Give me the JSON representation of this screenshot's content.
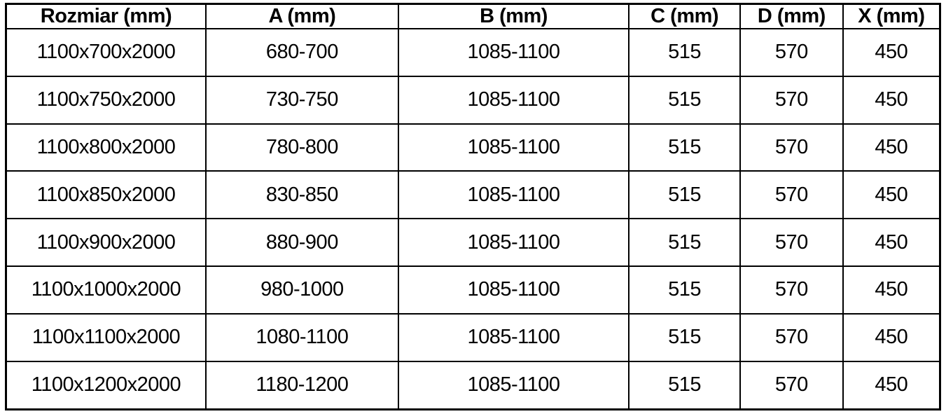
{
  "table": {
    "columns": [
      "Rozmiar (mm)",
      "A (mm)",
      "B (mm)",
      "C (mm)",
      "D (mm)",
      "X (mm)"
    ],
    "rows": [
      [
        "1100x700x2000",
        "680-700",
        "1085-1100",
        "515",
        "570",
        "450"
      ],
      [
        "1100x750x2000",
        "730-750",
        "1085-1100",
        "515",
        "570",
        "450"
      ],
      [
        "1100x800x2000",
        "780-800",
        "1085-1100",
        "515",
        "570",
        "450"
      ],
      [
        "1100x850x2000",
        "830-850",
        "1085-1100",
        "515",
        "570",
        "450"
      ],
      [
        "1100x900x2000",
        "880-900",
        "1085-1100",
        "515",
        "570",
        "450"
      ],
      [
        "1100x1000x2000",
        "980-1000",
        "1085-1100",
        "515",
        "570",
        "450"
      ],
      [
        "1100x1100x2000",
        "1080-1100",
        "1085-1100",
        "515",
        "570",
        "450"
      ],
      [
        "1100x1200x2000",
        "1180-1200",
        "1085-1100",
        "515",
        "570",
        "450"
      ]
    ]
  },
  "colors": {
    "border": "#000000",
    "text": "#000000",
    "background": "#ffffff"
  }
}
